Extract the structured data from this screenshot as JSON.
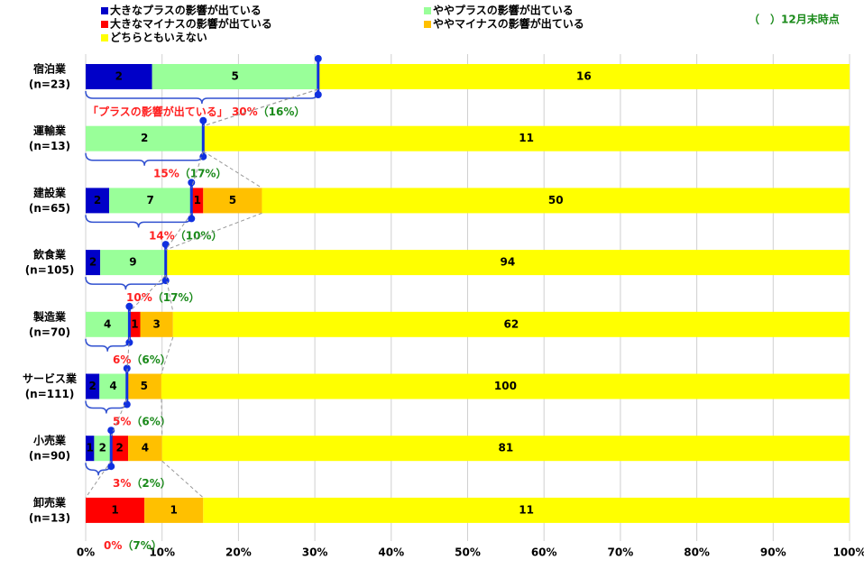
{
  "chart_data": {
    "type": "bar100h",
    "categories": [
      "宿泊業",
      "運輸業",
      "建設業",
      "飲食業",
      "製造業",
      "サービス業",
      "小売業",
      "卸売業"
    ],
    "category_counts": [
      "(n=23)",
      "(n=13)",
      "(n=65)",
      "(n=105)",
      "(n=70)",
      "(n=111)",
      "(n=90)",
      "(n=13)"
    ],
    "series": [
      {
        "name": "大きなプラスの影響が出ている",
        "color": "#0000c8",
        "values": [
          2,
          0,
          2,
          2,
          0,
          2,
          1,
          0
        ]
      },
      {
        "name": "ややプラスの影響が出ている",
        "color": "#99ff99",
        "values": [
          5,
          2,
          7,
          9,
          4,
          4,
          2,
          0
        ]
      },
      {
        "name": "大きなマイナスの影響が出ている",
        "color": "#ff0000",
        "values": [
          0,
          0,
          1,
          0,
          1,
          0,
          2,
          1
        ]
      },
      {
        "name": "ややマイナスの影響が出ている",
        "color": "#ffc000",
        "values": [
          0,
          0,
          5,
          0,
          3,
          5,
          4,
          1
        ]
      },
      {
        "name": "どちらともいえない",
        "color": "#ffff00",
        "values": [
          16,
          11,
          50,
          94,
          62,
          100,
          81,
          11
        ]
      }
    ],
    "annotations": [
      {
        "red": "「プラスの影響が出ている」 30%",
        "green": "（16%）"
      },
      {
        "red": "15%",
        "green": "（17%）"
      },
      {
        "red": "14%",
        "green": "（10%）"
      },
      {
        "red": "10%",
        "green": "（17%）"
      },
      {
        "red": "6%",
        "green": "（6%）"
      },
      {
        "red": "5%",
        "green": "（6%）"
      },
      {
        "red": "3%",
        "green": "（2%）"
      },
      {
        "red": "0%",
        "green": "（7%）"
      }
    ],
    "note": "（　）12月末時点",
    "xlim": [
      0,
      100
    ],
    "xticks": [
      {
        "value": 0,
        "label": "0%"
      },
      {
        "value": 10,
        "label": "10%"
      },
      {
        "value": 20,
        "label": "20%"
      },
      {
        "value": 30,
        "label": "30%"
      },
      {
        "value": 40,
        "label": "40%"
      },
      {
        "value": 50,
        "label": "50%"
      },
      {
        "value": 60,
        "label": "60%"
      },
      {
        "value": 70,
        "label": "70%"
      },
      {
        "value": 80,
        "label": "80%"
      },
      {
        "value": 90,
        "label": "90%"
      },
      {
        "value": 100,
        "label": "100%"
      }
    ],
    "grid": true
  }
}
